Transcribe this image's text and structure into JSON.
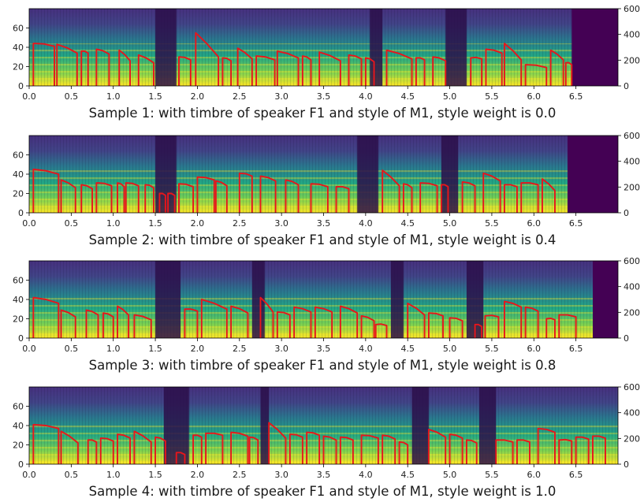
{
  "chart_data": [
    {
      "type": "heatmap",
      "title": "Sample 1: with timbre of speaker F1 and style of M1, style weight is 0.0",
      "xticks": [
        "0.0",
        "0.5",
        "1.0",
        "1.5",
        "2.0",
        "2.5",
        "3.0",
        "3.5",
        "4.0",
        "4.5",
        "5.0",
        "5.5",
        "6.0",
        "6.5"
      ],
      "yticks_left": [
        "0",
        "20",
        "40",
        "60"
      ],
      "yticks_right": [
        "0",
        "200",
        "400",
        "600"
      ],
      "xlim": [
        0,
        7.0
      ],
      "ylim_left": [
        0,
        80
      ],
      "ylim_right": [
        0,
        600
      ],
      "content_end": 6.45,
      "silence_regions": [
        [
          1.5,
          1.75
        ],
        [
          4.05,
          4.2
        ],
        [
          4.95,
          5.2
        ]
      ],
      "pitch_segments": [
        [
          0.05,
          0.3,
          44,
          41
        ],
        [
          0.33,
          0.57,
          43,
          34
        ],
        [
          0.62,
          0.7,
          36,
          34
        ],
        [
          0.8,
          0.95,
          38,
          33
        ],
        [
          1.07,
          1.2,
          37,
          26
        ],
        [
          1.3,
          1.48,
          32,
          24
        ],
        [
          1.78,
          1.92,
          30,
          27
        ],
        [
          1.98,
          2.25,
          55,
          30
        ],
        [
          2.3,
          2.4,
          29,
          26
        ],
        [
          2.48,
          2.65,
          39,
          28
        ],
        [
          2.7,
          2.92,
          31,
          27
        ],
        [
          2.95,
          3.2,
          36,
          29
        ],
        [
          3.25,
          3.35,
          31,
          27
        ],
        [
          3.45,
          3.7,
          35,
          26
        ],
        [
          3.8,
          3.95,
          32,
          28
        ],
        [
          4.0,
          4.1,
          29,
          25
        ],
        [
          4.25,
          4.55,
          37,
          28
        ],
        [
          4.6,
          4.7,
          29,
          27
        ],
        [
          4.8,
          4.95,
          30,
          26
        ],
        [
          5.25,
          5.38,
          29,
          28
        ],
        [
          5.43,
          5.62,
          38,
          34
        ],
        [
          5.65,
          5.85,
          44,
          27
        ],
        [
          5.9,
          6.15,
          22,
          19
        ],
        [
          6.2,
          6.35,
          37,
          27
        ],
        [
          6.38,
          6.45,
          24,
          22
        ]
      ]
    },
    {
      "type": "heatmap",
      "title": "Sample 2: with timbre of speaker F1 and style of M1, style weight is 0.4",
      "xticks": [
        "0.0",
        "0.5",
        "1.0",
        "1.5",
        "2.0",
        "2.5",
        "3.0",
        "3.5",
        "4.0",
        "4.5",
        "5.0",
        "5.5",
        "6.0",
        "6.5"
      ],
      "yticks_left": [
        "0",
        "20",
        "40",
        "60"
      ],
      "yticks_right": [
        "0",
        "200",
        "400",
        "600"
      ],
      "xlim": [
        0,
        7.0
      ],
      "ylim_left": [
        0,
        80
      ],
      "ylim_right": [
        0,
        600
      ],
      "content_end": 6.4,
      "silence_regions": [
        [
          1.5,
          1.75
        ],
        [
          3.9,
          4.15
        ],
        [
          4.9,
          5.1
        ]
      ],
      "pitch_segments": [
        [
          0.05,
          0.35,
          45,
          40
        ],
        [
          0.38,
          0.55,
          34,
          26
        ],
        [
          0.62,
          0.75,
          29,
          25
        ],
        [
          0.8,
          0.98,
          31,
          28
        ],
        [
          1.05,
          1.13,
          31,
          27
        ],
        [
          1.15,
          1.3,
          31,
          28
        ],
        [
          1.38,
          1.48,
          29,
          26
        ],
        [
          1.55,
          1.62,
          20,
          18
        ],
        [
          1.65,
          1.73,
          20,
          18
        ],
        [
          1.78,
          1.95,
          30,
          27
        ],
        [
          2.0,
          2.2,
          37,
          34
        ],
        [
          2.22,
          2.35,
          33,
          28
        ],
        [
          2.5,
          2.65,
          41,
          38
        ],
        [
          2.75,
          2.93,
          38,
          33
        ],
        [
          3.05,
          3.2,
          34,
          29
        ],
        [
          3.35,
          3.55,
          30,
          27
        ],
        [
          3.65,
          3.8,
          27,
          25
        ],
        [
          4.2,
          4.4,
          44,
          28
        ],
        [
          4.45,
          4.55,
          30,
          26
        ],
        [
          4.65,
          4.85,
          31,
          28
        ],
        [
          4.9,
          4.98,
          29,
          27
        ],
        [
          5.15,
          5.3,
          32,
          28
        ],
        [
          5.4,
          5.6,
          41,
          33
        ],
        [
          5.65,
          5.8,
          29,
          27
        ],
        [
          5.85,
          6.05,
          31,
          29
        ],
        [
          6.1,
          6.25,
          35,
          23
        ]
      ]
    },
    {
      "type": "heatmap",
      "title": "Sample 3: with timbre of speaker F1 and style of M1, style weight is 0.8",
      "xticks": [
        "0.0",
        "0.5",
        "1.0",
        "1.5",
        "2.0",
        "2.5",
        "3.0",
        "3.5",
        "4.0",
        "4.5",
        "5.0",
        "5.5",
        "6.0",
        "6.5"
      ],
      "yticks_left": [
        "0",
        "20",
        "40",
        "60"
      ],
      "yticks_right": [
        "0",
        "200",
        "400",
        "600"
      ],
      "xlim": [
        0,
        7.0
      ],
      "ylim_left": [
        0,
        80
      ],
      "ylim_right": [
        0,
        600
      ],
      "content_end": 6.7,
      "silence_regions": [
        [
          1.5,
          1.8
        ],
        [
          2.65,
          2.8
        ],
        [
          4.3,
          4.45
        ],
        [
          5.2,
          5.4
        ]
      ],
      "pitch_segments": [
        [
          0.05,
          0.35,
          42,
          36
        ],
        [
          0.38,
          0.55,
          29,
          22
        ],
        [
          0.68,
          0.82,
          29,
          24
        ],
        [
          0.88,
          1.0,
          26,
          22
        ],
        [
          1.05,
          1.18,
          33,
          24
        ],
        [
          1.25,
          1.45,
          24,
          19
        ],
        [
          1.85,
          2.0,
          30,
          28
        ],
        [
          2.05,
          2.35,
          40,
          30
        ],
        [
          2.4,
          2.6,
          33,
          26
        ],
        [
          2.75,
          2.9,
          42,
          27
        ],
        [
          2.95,
          3.1,
          27,
          24
        ],
        [
          3.15,
          3.35,
          32,
          27
        ],
        [
          3.4,
          3.6,
          32,
          27
        ],
        [
          3.7,
          3.9,
          33,
          26
        ],
        [
          3.95,
          4.1,
          23,
          18
        ],
        [
          4.12,
          4.25,
          14,
          13
        ],
        [
          4.5,
          4.7,
          36,
          24
        ],
        [
          4.75,
          4.92,
          26,
          23
        ],
        [
          5.0,
          5.15,
          21,
          18
        ],
        [
          5.3,
          5.38,
          14,
          12
        ],
        [
          5.42,
          5.58,
          23,
          22
        ],
        [
          5.65,
          5.85,
          38,
          32
        ],
        [
          5.9,
          6.05,
          32,
          28
        ],
        [
          6.15,
          6.25,
          20,
          19
        ],
        [
          6.3,
          6.5,
          24,
          22
        ]
      ]
    },
    {
      "type": "heatmap",
      "title": "Sample 4: with timbre of speaker F1 and style of M1, style weight is 1.0",
      "xticks": [
        "0.0",
        "0.5",
        "1.0",
        "1.5",
        "2.0",
        "2.5",
        "3.0",
        "3.5",
        "4.0",
        "4.5",
        "5.0",
        "5.5",
        "6.0",
        "6.5"
      ],
      "yticks_left": [
        "0",
        "20",
        "40",
        "60"
      ],
      "yticks_right": [
        "0",
        "200",
        "400",
        "600"
      ],
      "xlim": [
        0,
        7.0
      ],
      "ylim_left": [
        0,
        80
      ],
      "ylim_right": [
        0,
        600
      ],
      "content_end": 7.0,
      "silence_regions": [
        [
          1.6,
          1.9
        ],
        [
          2.75,
          2.85
        ],
        [
          4.55,
          4.75
        ],
        [
          5.35,
          5.55
        ]
      ],
      "pitch_segments": [
        [
          0.05,
          0.35,
          41,
          37
        ],
        [
          0.38,
          0.58,
          34,
          22
        ],
        [
          0.7,
          0.8,
          25,
          23
        ],
        [
          0.85,
          1.0,
          27,
          24
        ],
        [
          1.05,
          1.2,
          31,
          27
        ],
        [
          1.25,
          1.45,
          34,
          23
        ],
        [
          1.5,
          1.62,
          28,
          24
        ],
        [
          1.75,
          1.85,
          12,
          10
        ],
        [
          1.95,
          2.05,
          30,
          28
        ],
        [
          2.1,
          2.3,
          32,
          30
        ],
        [
          2.4,
          2.6,
          33,
          29
        ],
        [
          2.62,
          2.72,
          28,
          25
        ],
        [
          2.85,
          3.05,
          43,
          27
        ],
        [
          3.1,
          3.25,
          31,
          28
        ],
        [
          3.3,
          3.45,
          33,
          30
        ],
        [
          3.5,
          3.65,
          29,
          25
        ],
        [
          3.7,
          3.85,
          28,
          25
        ],
        [
          3.95,
          4.15,
          30,
          27
        ],
        [
          4.2,
          4.35,
          30,
          26
        ],
        [
          4.4,
          4.5,
          23,
          20
        ],
        [
          4.75,
          4.95,
          36,
          28
        ],
        [
          5.0,
          5.15,
          31,
          27
        ],
        [
          5.2,
          5.32,
          25,
          22
        ],
        [
          5.55,
          5.75,
          25,
          23
        ],
        [
          5.8,
          5.95,
          25,
          23
        ],
        [
          6.05,
          6.25,
          37,
          33
        ],
        [
          6.3,
          6.45,
          25,
          24
        ],
        [
          6.5,
          6.65,
          28,
          26
        ],
        [
          6.7,
          6.85,
          29,
          27
        ]
      ]
    }
  ]
}
